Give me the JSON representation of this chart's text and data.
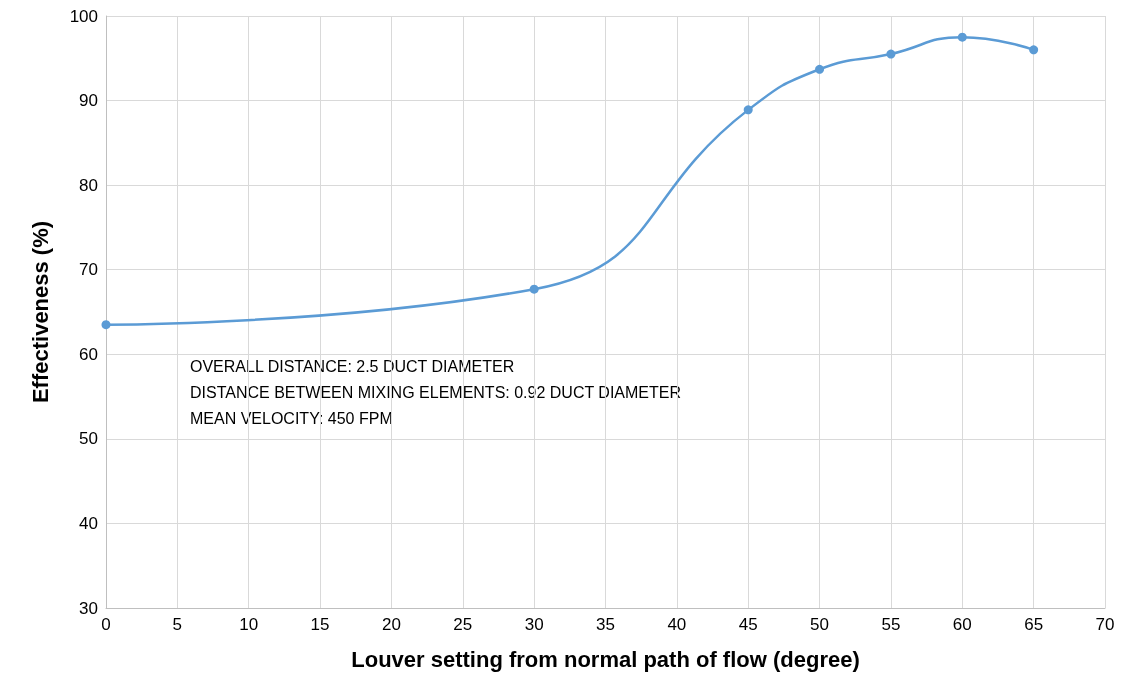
{
  "chart_data": {
    "type": "line",
    "xlabel": "Louver setting from normal path of flow (degree)",
    "ylabel": "Effectiveness (%)",
    "x": [
      0,
      30,
      45,
      50,
      55,
      60,
      65
    ],
    "series": [
      {
        "color": "#5b9bd5",
        "values": [
          63.5,
          67.7,
          88.9,
          93.7,
          95.5,
          97.5,
          96.0
        ]
      }
    ],
    "xlim": [
      0,
      70
    ],
    "xticks": [
      0,
      5,
      10,
      15,
      20,
      25,
      30,
      35,
      40,
      45,
      50,
      55,
      60,
      65,
      70
    ],
    "ylim": [
      30,
      100
    ],
    "yticks": [
      30,
      40,
      50,
      60,
      70,
      80,
      90,
      100
    ],
    "grid": true,
    "marker": "circle",
    "line_style": "solid",
    "annotations": [
      "OVERALL DISTANCE: 2.5 DUCT DIAMETER",
      "DISTANCE BETWEEN MIXING ELEMENTS: 0.92 DUCT DIAMETER",
      "MEAN VELOCITY: 450 FPM"
    ]
  }
}
